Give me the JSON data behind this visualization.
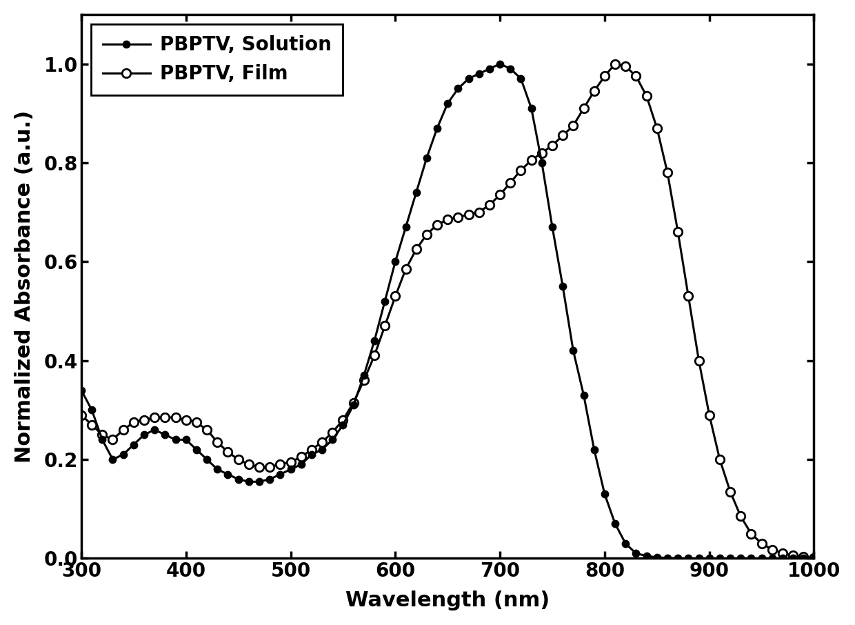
{
  "solution_x": [
    300,
    310,
    320,
    330,
    340,
    350,
    360,
    370,
    380,
    390,
    400,
    410,
    420,
    430,
    440,
    450,
    460,
    470,
    480,
    490,
    500,
    510,
    520,
    530,
    540,
    550,
    560,
    570,
    580,
    590,
    600,
    610,
    620,
    630,
    640,
    650,
    660,
    670,
    680,
    690,
    700,
    710,
    720,
    730,
    740,
    750,
    760,
    770,
    780,
    790,
    800,
    810,
    820,
    830,
    840,
    850,
    860,
    870,
    880,
    890,
    900,
    910,
    920,
    930,
    940,
    950,
    960,
    970,
    980,
    990,
    1000
  ],
  "solution_y": [
    0.34,
    0.3,
    0.24,
    0.2,
    0.21,
    0.23,
    0.25,
    0.26,
    0.25,
    0.24,
    0.24,
    0.22,
    0.2,
    0.18,
    0.17,
    0.16,
    0.155,
    0.155,
    0.16,
    0.17,
    0.18,
    0.19,
    0.21,
    0.22,
    0.24,
    0.27,
    0.31,
    0.37,
    0.44,
    0.52,
    0.6,
    0.67,
    0.74,
    0.81,
    0.87,
    0.92,
    0.95,
    0.97,
    0.98,
    0.99,
    1.0,
    0.99,
    0.97,
    0.91,
    0.8,
    0.67,
    0.55,
    0.42,
    0.33,
    0.22,
    0.13,
    0.07,
    0.03,
    0.01,
    0.005,
    0.002,
    0.001,
    0.0,
    0.0,
    0.0,
    0.0,
    0.0,
    0.0,
    0.0,
    0.0,
    0.0,
    0.0,
    0.0,
    0.0,
    0.0,
    0.0
  ],
  "film_x": [
    300,
    310,
    320,
    330,
    340,
    350,
    360,
    370,
    380,
    390,
    400,
    410,
    420,
    430,
    440,
    450,
    460,
    470,
    480,
    490,
    500,
    510,
    520,
    530,
    540,
    550,
    560,
    570,
    580,
    590,
    600,
    610,
    620,
    630,
    640,
    650,
    660,
    670,
    680,
    690,
    700,
    710,
    720,
    730,
    740,
    750,
    760,
    770,
    780,
    790,
    800,
    810,
    820,
    830,
    840,
    850,
    860,
    870,
    880,
    890,
    900,
    910,
    920,
    930,
    940,
    950,
    960,
    970,
    980,
    990,
    1000
  ],
  "film_y": [
    0.29,
    0.27,
    0.25,
    0.24,
    0.26,
    0.275,
    0.28,
    0.285,
    0.285,
    0.285,
    0.28,
    0.275,
    0.26,
    0.235,
    0.215,
    0.2,
    0.19,
    0.185,
    0.185,
    0.19,
    0.195,
    0.205,
    0.22,
    0.235,
    0.255,
    0.28,
    0.315,
    0.36,
    0.41,
    0.47,
    0.53,
    0.585,
    0.625,
    0.655,
    0.675,
    0.685,
    0.69,
    0.695,
    0.7,
    0.715,
    0.735,
    0.76,
    0.785,
    0.805,
    0.82,
    0.835,
    0.855,
    0.875,
    0.91,
    0.945,
    0.975,
    1.0,
    0.995,
    0.975,
    0.935,
    0.87,
    0.78,
    0.66,
    0.53,
    0.4,
    0.29,
    0.2,
    0.135,
    0.085,
    0.05,
    0.03,
    0.018,
    0.01,
    0.006,
    0.003,
    0.001
  ],
  "xlabel": "Wavelength (nm)",
  "ylabel": "Normalized Absorbance (a.u.)",
  "xlim": [
    300,
    1000
  ],
  "ylim": [
    0.0,
    1.1
  ],
  "yticks": [
    0.0,
    0.2,
    0.4,
    0.6,
    0.8,
    1.0
  ],
  "xticks": [
    300,
    400,
    500,
    600,
    700,
    800,
    900,
    1000
  ],
  "legend_solution": "PBPTV, Solution",
  "legend_film": "PBPTV, Film",
  "line_color": "#000000",
  "bg_color": "#ffffff",
  "marker_size_filled": 7,
  "marker_size_open": 9,
  "linewidth": 2.2,
  "font_size_label": 22,
  "font_size_tick": 20,
  "font_size_legend": 20
}
